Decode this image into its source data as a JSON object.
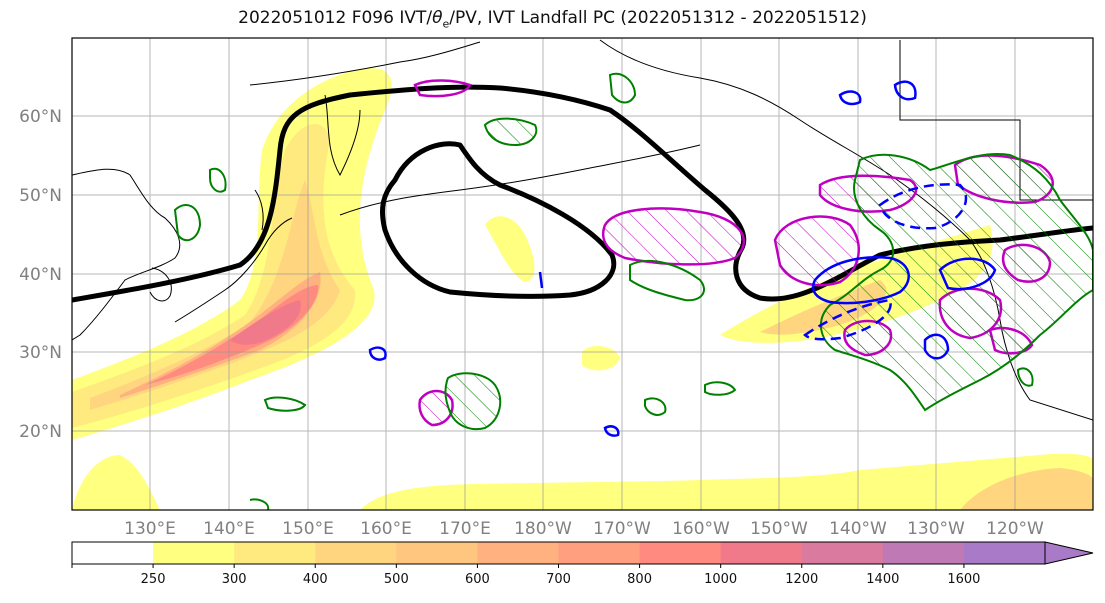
{
  "title": {
    "prefix": "2022051012 F096 IVT/",
    "theta": "θ",
    "sub": "e",
    "suffix": "/PV, IVT Landfall PC (2022051312 - 2022051512)"
  },
  "map": {
    "lon_labels": [
      "130°E",
      "140°E",
      "150°E",
      "160°E",
      "170°E",
      "180°W",
      "170°W",
      "160°W",
      "150°W",
      "140°W",
      "130°W",
      "120°W"
    ],
    "lat_labels": [
      "60°N",
      "50°N",
      "40°N",
      "30°N",
      "20°N"
    ],
    "lon_range": [
      120,
      250
    ],
    "lat_range": [
      10,
      70
    ]
  },
  "colorbar": {
    "ticks": [
      "250",
      "300",
      "400",
      "500",
      "600",
      "700",
      "800",
      "1000",
      "1200",
      "1400",
      "1600"
    ],
    "colors": [
      "#ffffff",
      "#ffff80",
      "#ffea80",
      "#ffd580",
      "#ffc680",
      "#ffb280",
      "#ff9f80",
      "#ff8a80",
      "#f07a8a",
      "#d97a9e",
      "#bf7ab5",
      "#a87ac8"
    ],
    "extend": "max"
  },
  "colors": {
    "pv_positive": "#008000",
    "pv_negative": "#0000ff",
    "landfall_pc": "#c000c0",
    "theta_e": "#000000"
  }
}
